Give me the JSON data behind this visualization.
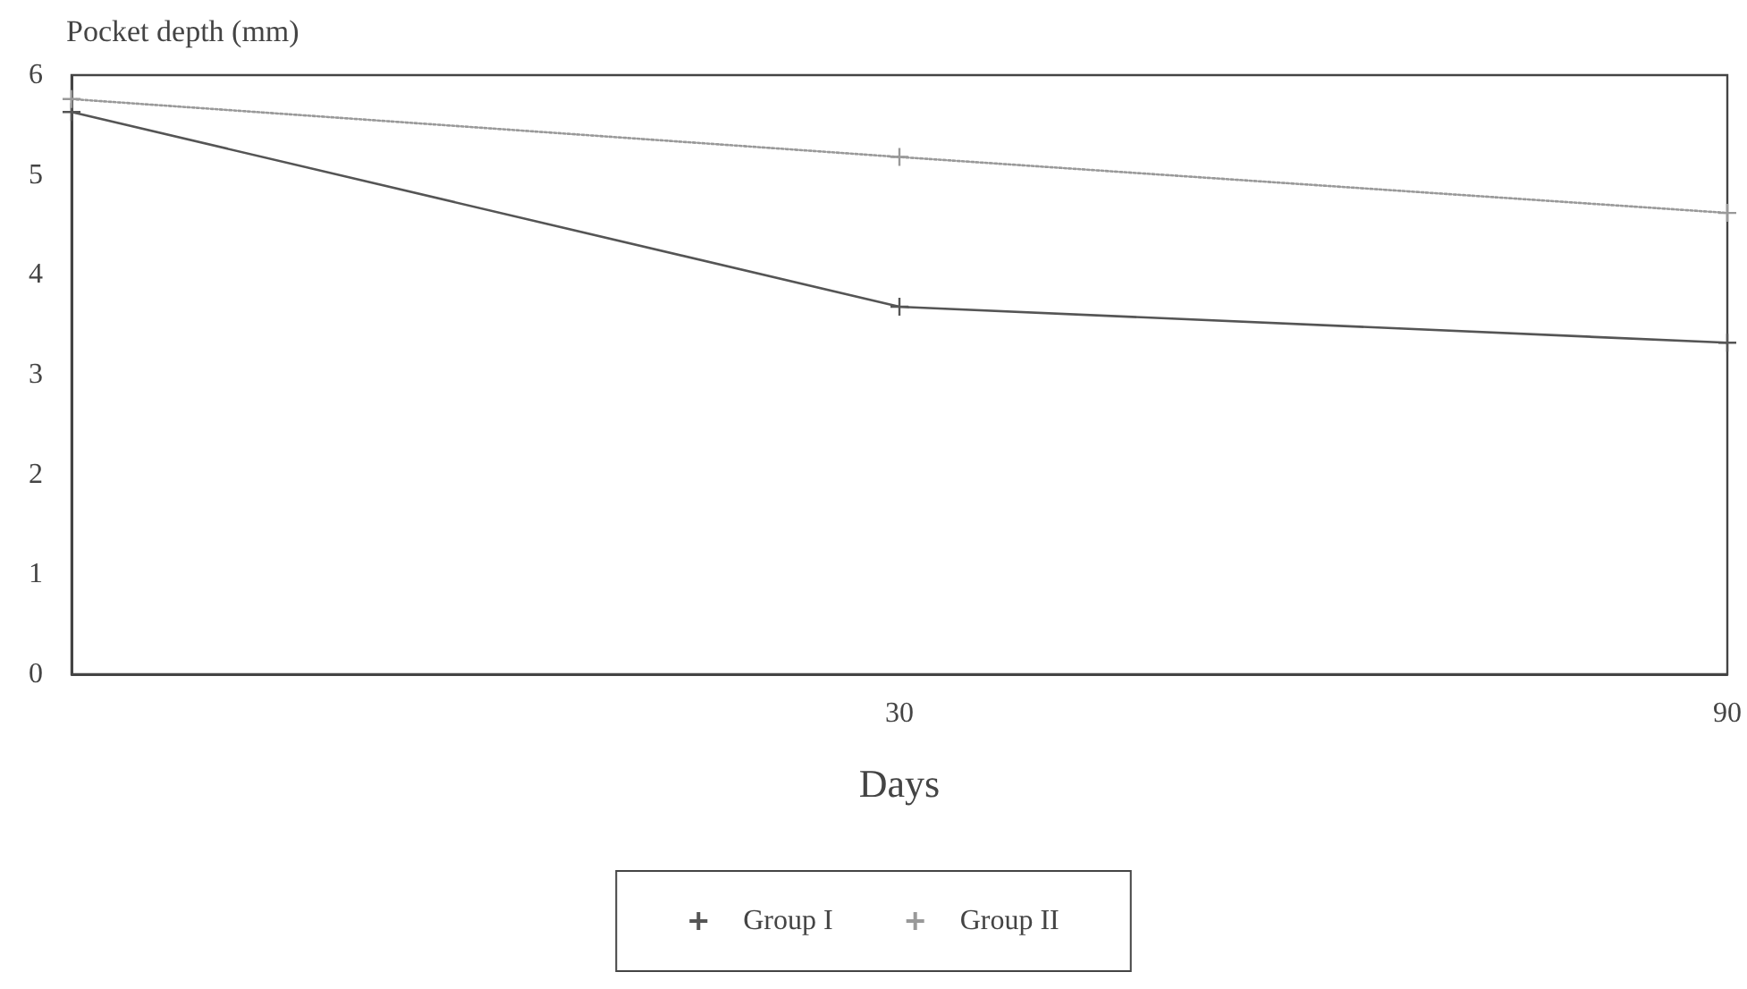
{
  "chart_data": {
    "type": "line",
    "ylabel": "Pocket depth (mm)",
    "xlabel": "Days",
    "categories": [
      null,
      "30",
      "90"
    ],
    "series": [
      {
        "name": "Group I",
        "color": "#555555",
        "line_style": "solid",
        "values": [
          5.63,
          3.68,
          3.32
        ]
      },
      {
        "name": "Group II",
        "color": "#999999",
        "line_style": "dotted",
        "values": [
          5.76,
          5.18,
          4.62
        ]
      }
    ],
    "ylim": [
      0,
      6
    ],
    "yticks": [
      0,
      1,
      2,
      3,
      4,
      5,
      6
    ],
    "grid": false,
    "legend": "bottom",
    "marker": "cross"
  }
}
